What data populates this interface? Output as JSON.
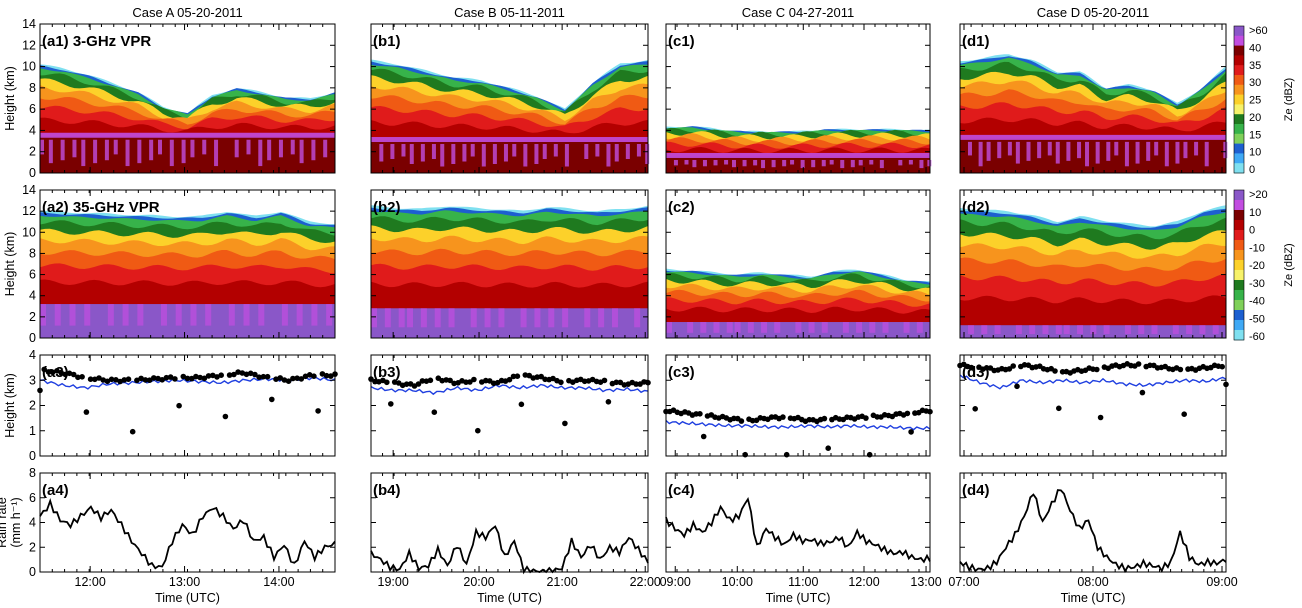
{
  "chart_data": {
    "type": "multi-panel radar time-height and time-series figure",
    "columns": [
      {
        "title": "Case A 05-20-2011",
        "xticks": [
          "12:00",
          "13:00",
          "14:00"
        ],
        "xtick_frac": [
          0.17,
          0.49,
          0.81
        ]
      },
      {
        "title": "Case B 05-11-2011",
        "xticks": [
          "19:00",
          "20:00",
          "21:00",
          "22:00"
        ],
        "xtick_frac": [
          0.08,
          0.39,
          0.69,
          0.99
        ]
      },
      {
        "title": "Case C 04-27-2011",
        "xticks": [
          "09:00",
          "10:00",
          "11:00",
          "12:00",
          "13:00"
        ],
        "xtick_frac": [
          0.035,
          0.27,
          0.52,
          0.75,
          0.985
        ]
      },
      {
        "title": "Case D 05-20-2011",
        "xticks": [
          "07:00",
          "08:00",
          "09:00"
        ],
        "xtick_frac": [
          0.015,
          0.5,
          0.985
        ]
      }
    ],
    "xlabel": "Time (UTC)",
    "rows": [
      {
        "ylabel": "Height (km)",
        "ylim": [
          0,
          14
        ],
        "yticks": [
          0,
          2,
          4,
          6,
          8,
          10,
          12,
          14
        ],
        "labels": [
          "(a1) 3-GHz VPR",
          "(b1)",
          "(c1)",
          "(d1)"
        ]
      },
      {
        "ylabel": "Height (km)",
        "ylim": [
          0,
          14
        ],
        "yticks": [
          0,
          2,
          4,
          6,
          8,
          10,
          12,
          14
        ],
        "labels": [
          "(a2) 35-GHz VPR",
          "(b2)",
          "(c2)",
          "(d2)"
        ]
      },
      {
        "ylabel": "Height (km)",
        "ylim": [
          0,
          4
        ],
        "yticks": [
          0,
          1,
          2,
          3,
          4
        ],
        "labels": [
          "(a3)",
          "(b3)",
          "(c3)",
          "(d3)"
        ]
      },
      {
        "ylabel": "Rain rate",
        "ylabel2": "(mm h⁻¹)",
        "ylim": [
          0,
          8
        ],
        "yticks": [
          0,
          2,
          4,
          6,
          8
        ],
        "labels": [
          "(a4)",
          "(b4)",
          "(c4)",
          "(d4)"
        ]
      }
    ],
    "colorbars": [
      {
        "label": "Ze (dBZ)",
        "ticks": [
          ">60",
          "40",
          "35",
          "30",
          "25",
          "20",
          "15",
          "10",
          "0"
        ],
        "colors": [
          "#8a57c8",
          "#c24de0",
          "#7a0000",
          "#b30000",
          "#e01b1b",
          "#f05a14",
          "#f7941d",
          "#fcd12a",
          "#f7f26a",
          "#1f7a1f",
          "#37b34a",
          "#7fd05a",
          "#1d5fd0",
          "#3fa9f5",
          "#7fe0f0"
        ]
      },
      {
        "label": "Ze (dBZ)",
        "ticks": [
          ">20",
          "10",
          "0",
          "-10",
          "-20",
          "-30",
          "-40",
          "-50",
          "-60"
        ],
        "colors": [
          "#8a57c8",
          "#c24de0",
          "#7a0000",
          "#b30000",
          "#e01b1b",
          "#f05a14",
          "#f7941d",
          "#fcd12a",
          "#f7f26a",
          "#1f7a1f",
          "#37b34a",
          "#7fd05a",
          "#1d5fd0",
          "#3fa9f5",
          "#7fe0f0"
        ]
      }
    ],
    "row1_echo": [
      {
        "top": [
          10.2,
          9.8,
          9.2,
          8.4,
          7.6,
          6.2,
          5.6,
          7.3,
          8.0,
          7.6,
          7.1,
          7.0,
          7.6
        ],
        "melt": 3.5
      },
      {
        "top": [
          10.6,
          10.2,
          9.6,
          9.0,
          8.7,
          8.0,
          7.2,
          6.0,
          8.5,
          10.3,
          10.6
        ],
        "melt": 3.1
      },
      {
        "top": [
          4.3,
          4.4,
          4.1,
          3.9,
          3.9,
          3.9,
          4.1,
          4.1,
          4.1,
          4.1,
          4.0
        ],
        "melt": 1.6
      },
      {
        "top": [
          10.5,
          10.8,
          11.2,
          10.6,
          9.5,
          9.5,
          8.0,
          8.3,
          7.8,
          6.5,
          8.0,
          10.0
        ],
        "melt": 3.3
      }
    ],
    "row2_echo": [
      {
        "top": [
          12.0,
          11.9,
          11.8,
          11.7,
          11.6,
          11.5,
          11.5,
          12.0,
          11.5,
          12.0,
          11.0,
          10.8
        ],
        "melt": 3.4
      },
      {
        "top": [
          12.5,
          12.3,
          12.2,
          12.5,
          12.3,
          12.2,
          12.0,
          12.4,
          12.2,
          12.0,
          12.2,
          12.5
        ],
        "melt": 3.0
      },
      {
        "top": [
          6.5,
          6.4,
          6.2,
          6.0,
          6.2,
          6.0,
          5.8,
          6.3,
          6.5,
          6.0,
          5.5,
          5.3
        ],
        "melt": 1.7
      },
      {
        "top": [
          12.3,
          12.1,
          12.0,
          11.6,
          11.0,
          11.5,
          11.1,
          10.8,
          10.6,
          11.0,
          12.0,
          12.5
        ],
        "melt": 1.4
      }
    ],
    "row3_series": [
      {
        "dots": [
          3.4,
          3.3,
          3.1,
          3.0,
          3.0,
          3.05,
          3.1,
          3.1,
          3.2,
          3.3,
          3.1,
          3.0,
          3.2,
          3.2
        ],
        "line": [
          3.0,
          2.8,
          2.7,
          2.85,
          2.9,
          2.95,
          3.0,
          2.95,
          2.9,
          3.0,
          3.05,
          3.0,
          3.1,
          3.0
        ]
      },
      {
        "dots": [
          3.0,
          2.9,
          2.8,
          3.1,
          2.9,
          3.0,
          2.9,
          3.2,
          3.1,
          2.95,
          3.0,
          2.95,
          2.85,
          2.9
        ],
        "line": [
          2.7,
          2.6,
          2.6,
          2.5,
          2.7,
          2.6,
          2.8,
          2.7,
          2.8,
          2.7,
          2.7,
          2.6,
          2.65,
          2.55
        ]
      },
      {
        "dots": [
          1.8,
          1.7,
          1.6,
          1.5,
          1.4,
          1.5,
          1.55,
          1.4,
          1.45,
          1.5,
          1.55,
          1.6,
          1.7,
          1.8
        ],
        "line": [
          1.35,
          1.3,
          1.25,
          1.2,
          1.2,
          1.15,
          1.15,
          1.2,
          1.15,
          1.2,
          1.15,
          1.15,
          1.1,
          1.1
        ]
      },
      {
        "dots": [
          3.6,
          3.5,
          3.4,
          3.6,
          3.5,
          3.3,
          3.4,
          3.5,
          3.6,
          3.6,
          3.5,
          3.4,
          3.5,
          3.6
        ],
        "line": [
          3.2,
          2.9,
          2.7,
          3.0,
          2.9,
          3.0,
          2.9,
          3.0,
          2.85,
          2.8,
          2.9,
          3.0,
          2.95,
          3.1
        ]
      }
    ],
    "row4_rain": [
      [
        4.5,
        5.5,
        4.2,
        3.8,
        4.5,
        5.2,
        4.4,
        5.0,
        3.8,
        2.5,
        1.5,
        0.5,
        0.4,
        2.5,
        3.8,
        3.0,
        4.5,
        5.2,
        4.5,
        3.5,
        4.2,
        2.5,
        2.8,
        1.2,
        2.2,
        0.5,
        2.5,
        1.2,
        2.0,
        2.3
      ],
      [
        1.5,
        1.0,
        0.4,
        0.2,
        1.5,
        0.3,
        0.5,
        1.8,
        0.5,
        2.2,
        0.6,
        3.2,
        2.8,
        3.8,
        1.2,
        2.5,
        0.2,
        0.1,
        0.0,
        0.1,
        0.3,
        2.5,
        1.2,
        2.2,
        1.0,
        2.0,
        1.6,
        2.8,
        1.8,
        0.8
      ],
      [
        4.2,
        3.5,
        3.0,
        3.8,
        3.2,
        4.0,
        5.2,
        4.2,
        4.5,
        6.0,
        2.0,
        3.5,
        2.8,
        2.2,
        3.0,
        2.5,
        2.6,
        2.3,
        2.4,
        2.8,
        2.0,
        3.2,
        2.5,
        2.2,
        1.8,
        1.5,
        1.6,
        1.2,
        1.0,
        1.1
      ],
      [
        0.8,
        0.4,
        0.2,
        0.3,
        0.8,
        2.0,
        3.0,
        4.5,
        6.5,
        4.0,
        5.5,
        6.8,
        5.0,
        3.5,
        4.2,
        2.0,
        1.2,
        0.6,
        0.3,
        0.4,
        0.7,
        0.5,
        0.3,
        0.8,
        3.2,
        1.2,
        0.6,
        0.8,
        0.7,
        1.0
      ]
    ]
  }
}
